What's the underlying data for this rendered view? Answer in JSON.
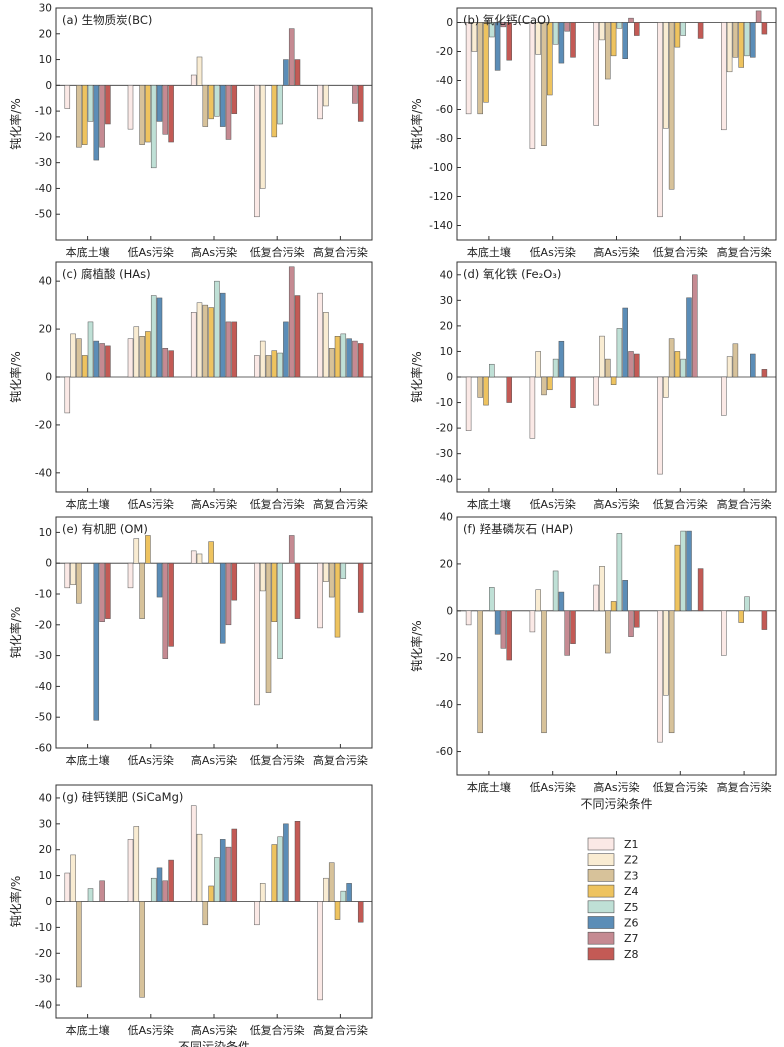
{
  "series_names": [
    "Z1",
    "Z2",
    "Z3",
    "Z4",
    "Z5",
    "Z6",
    "Z7",
    "Z8"
  ],
  "colors": [
    "#fbe9e6",
    "#f9ecd2",
    "#d7c29a",
    "#eec35f",
    "#bfe0d6",
    "#5b8db7",
    "#c58a92",
    "#c35a55"
  ],
  "categories": [
    "本底土壤",
    "低As污染",
    "高As污染",
    "低复合污染",
    "高复合污染"
  ],
  "ylabel": "钝化率/%",
  "xlabel": "不同污染条件",
  "chart_data": [
    {
      "type": "bar",
      "title": "(a) 生物质炭(BC)",
      "ylabel": "钝化率/%",
      "xlabel": "",
      "ylim": [
        -60,
        30
      ],
      "yticks": [
        -50,
        -40,
        -30,
        -20,
        -10,
        0,
        10,
        20,
        30
      ],
      "categories": [
        "本底土壤",
        "低As污染",
        "高As污染",
        "低复合污染",
        "高复合污染"
      ],
      "series": [
        {
          "name": "Z1",
          "values": [
            -9,
            -17,
            4,
            -51,
            -13
          ]
        },
        {
          "name": "Z2",
          "values": [
            0,
            0,
            11,
            -40,
            -8
          ]
        },
        {
          "name": "Z3",
          "values": [
            -24,
            -23,
            -16,
            0,
            0
          ]
        },
        {
          "name": "Z4",
          "values": [
            -23,
            -22,
            -13,
            -20,
            0
          ]
        },
        {
          "name": "Z5",
          "values": [
            -14,
            -32,
            -12,
            -15,
            0
          ]
        },
        {
          "name": "Z6",
          "values": [
            -29,
            -14,
            -16,
            10,
            0
          ]
        },
        {
          "name": "Z7",
          "values": [
            -24,
            -19,
            -21,
            22,
            -7
          ]
        },
        {
          "name": "Z8",
          "values": [
            -15,
            -22,
            -11,
            10,
            -14
          ]
        }
      ]
    },
    {
      "type": "bar",
      "title": "(b) 氧化钙(CaO)",
      "ylabel": "钝化率/%",
      "xlabel": "",
      "ylim": [
        -150,
        10
      ],
      "yticks": [
        -140,
        -120,
        -100,
        -80,
        -60,
        -40,
        -20,
        0
      ],
      "categories": [
        "本底土壤",
        "低As污染",
        "高As污染",
        "低复合污染",
        "高复合污染"
      ],
      "series": [
        {
          "name": "Z1",
          "values": [
            -63,
            -87,
            -71,
            -134,
            -74
          ]
        },
        {
          "name": "Z2",
          "values": [
            -20,
            -22,
            -12,
            -73,
            -34
          ]
        },
        {
          "name": "Z3",
          "values": [
            -63,
            -85,
            -39,
            -115,
            -24
          ]
        },
        {
          "name": "Z4",
          "values": [
            -55,
            -50,
            -23,
            -17,
            -31
          ]
        },
        {
          "name": "Z5",
          "values": [
            -10,
            -15,
            -4,
            -9,
            -23
          ]
        },
        {
          "name": "Z6",
          "values": [
            -33,
            -28,
            -25,
            0,
            -24
          ]
        },
        {
          "name": "Z7",
          "values": [
            -3,
            -6,
            3,
            0,
            8
          ]
        },
        {
          "name": "Z8",
          "values": [
            -26,
            -24,
            -9,
            -11,
            -8
          ]
        }
      ]
    },
    {
      "type": "bar",
      "title": "(c) 腐植酸 (HAs)",
      "ylabel": "钝化率/%",
      "xlabel": "",
      "ylim": [
        -48,
        48
      ],
      "yticks": [
        -40,
        -20,
        0,
        20,
        40
      ],
      "categories": [
        "本底土壤",
        "低As污染",
        "高As污染",
        "低复合污染",
        "高复合污染"
      ],
      "series": [
        {
          "name": "Z1",
          "values": [
            -15,
            16,
            27,
            9,
            35
          ]
        },
        {
          "name": "Z2",
          "values": [
            18,
            21,
            31,
            15,
            27
          ]
        },
        {
          "name": "Z3",
          "values": [
            16,
            17,
            30,
            9,
            12
          ]
        },
        {
          "name": "Z4",
          "values": [
            9,
            19,
            29,
            11,
            17
          ]
        },
        {
          "name": "Z5",
          "values": [
            23,
            34,
            40,
            10,
            18
          ]
        },
        {
          "name": "Z6",
          "values": [
            15,
            33,
            35,
            23,
            16
          ]
        },
        {
          "name": "Z7",
          "values": [
            14,
            12,
            23,
            46,
            15
          ]
        },
        {
          "name": "Z8",
          "values": [
            13,
            11,
            23,
            34,
            14
          ]
        }
      ]
    },
    {
      "type": "bar",
      "title": "(d) 氧化铁 (Fe₂O₃)",
      "ylabel": "钝化率/%",
      "xlabel": "",
      "ylim": [
        -45,
        45
      ],
      "yticks": [
        -40,
        -30,
        -20,
        -10,
        0,
        10,
        20,
        30,
        40
      ],
      "categories": [
        "本底土壤",
        "低As污染",
        "高As污染",
        "低复合污染",
        "高复合污染"
      ],
      "series": [
        {
          "name": "Z1",
          "values": [
            -21,
            -24,
            -11,
            -38,
            -15
          ]
        },
        {
          "name": "Z2",
          "values": [
            0,
            10,
            16,
            -8,
            8
          ]
        },
        {
          "name": "Z3",
          "values": [
            -8,
            -7,
            7,
            15,
            13
          ]
        },
        {
          "name": "Z4",
          "values": [
            -11,
            -5,
            -3,
            10,
            0
          ]
        },
        {
          "name": "Z5",
          "values": [
            5,
            7,
            19,
            7,
            0
          ]
        },
        {
          "name": "Z6",
          "values": [
            0,
            14,
            27,
            31,
            9
          ]
        },
        {
          "name": "Z7",
          "values": [
            0,
            0,
            10,
            40,
            0
          ]
        },
        {
          "name": "Z8",
          "values": [
            -10,
            -12,
            9,
            0,
            3
          ]
        }
      ]
    },
    {
      "type": "bar",
      "title": "(e) 有机肥 (OM)",
      "ylabel": "钝化率/%",
      "xlabel": "",
      "ylim": [
        -60,
        15
      ],
      "yticks": [
        -60,
        -50,
        -40,
        -30,
        -20,
        -10,
        0,
        10
      ],
      "categories": [
        "本底土壤",
        "低As污染",
        "高As污染",
        "低复合污染",
        "高复合污染"
      ],
      "series": [
        {
          "name": "Z1",
          "values": [
            -8,
            -8,
            4,
            -46,
            -21
          ]
        },
        {
          "name": "Z2",
          "values": [
            -7,
            8,
            3,
            -9,
            -6
          ]
        },
        {
          "name": "Z3",
          "values": [
            -13,
            -18,
            0,
            -42,
            -11
          ]
        },
        {
          "name": "Z4",
          "values": [
            0,
            9,
            7,
            -19,
            -24
          ]
        },
        {
          "name": "Z5",
          "values": [
            0,
            0,
            0,
            -31,
            -5
          ]
        },
        {
          "name": "Z6",
          "values": [
            -51,
            -11,
            -26,
            0,
            0
          ]
        },
        {
          "name": "Z7",
          "values": [
            -19,
            -31,
            -20,
            9,
            0
          ]
        },
        {
          "name": "Z8",
          "values": [
            -18,
            -27,
            -12,
            -18,
            -16
          ]
        }
      ]
    },
    {
      "type": "bar",
      "title": "(f) 羟基磷灰石 (HAP)",
      "ylabel": "钝化率/%",
      "xlabel": "不同污染条件",
      "ylim": [
        -70,
        40
      ],
      "yticks": [
        -60,
        -40,
        -20,
        0,
        20,
        40
      ],
      "categories": [
        "本底土壤",
        "低As污染",
        "高As污染",
        "低复合污染",
        "高复合污染"
      ],
      "series": [
        {
          "name": "Z1",
          "values": [
            -6,
            -9,
            11,
            -56,
            -19
          ]
        },
        {
          "name": "Z2",
          "values": [
            0,
            9,
            19,
            -36,
            0
          ]
        },
        {
          "name": "Z3",
          "values": [
            -52,
            -52,
            -18,
            -52,
            0
          ]
        },
        {
          "name": "Z4",
          "values": [
            0,
            0,
            4,
            28,
            -5
          ]
        },
        {
          "name": "Z5",
          "values": [
            10,
            17,
            33,
            34,
            6
          ]
        },
        {
          "name": "Z6",
          "values": [
            -10,
            8,
            13,
            34,
            0
          ]
        },
        {
          "name": "Z7",
          "values": [
            -16,
            -19,
            -11,
            0,
            0
          ]
        },
        {
          "name": "Z8",
          "values": [
            -21,
            -14,
            -7,
            18,
            -8
          ]
        }
      ]
    },
    {
      "type": "bar",
      "title": "(g) 硅钙镁肥 (SiCaMg)",
      "ylabel": "钝化率/%",
      "xlabel": "不同污染条件",
      "ylim": [
        -45,
        45
      ],
      "yticks": [
        -40,
        -30,
        -20,
        -10,
        0,
        10,
        20,
        30,
        40
      ],
      "categories": [
        "本底土壤",
        "低As污染",
        "高As污染",
        "低复合污染",
        "高复合污染"
      ],
      "series": [
        {
          "name": "Z1",
          "values": [
            11,
            24,
            37,
            -9,
            -38
          ]
        },
        {
          "name": "Z2",
          "values": [
            18,
            29,
            26,
            7,
            9
          ]
        },
        {
          "name": "Z3",
          "values": [
            -33,
            -37,
            -9,
            0,
            15
          ]
        },
        {
          "name": "Z4",
          "values": [
            0,
            0,
            6,
            22,
            -7
          ]
        },
        {
          "name": "Z5",
          "values": [
            5,
            9,
            17,
            25,
            4
          ]
        },
        {
          "name": "Z6",
          "values": [
            0,
            13,
            24,
            30,
            7
          ]
        },
        {
          "name": "Z7",
          "values": [
            8,
            8,
            21,
            0,
            0
          ]
        },
        {
          "name": "Z8",
          "values": [
            0,
            16,
            28,
            31,
            -8
          ]
        }
      ]
    }
  ]
}
